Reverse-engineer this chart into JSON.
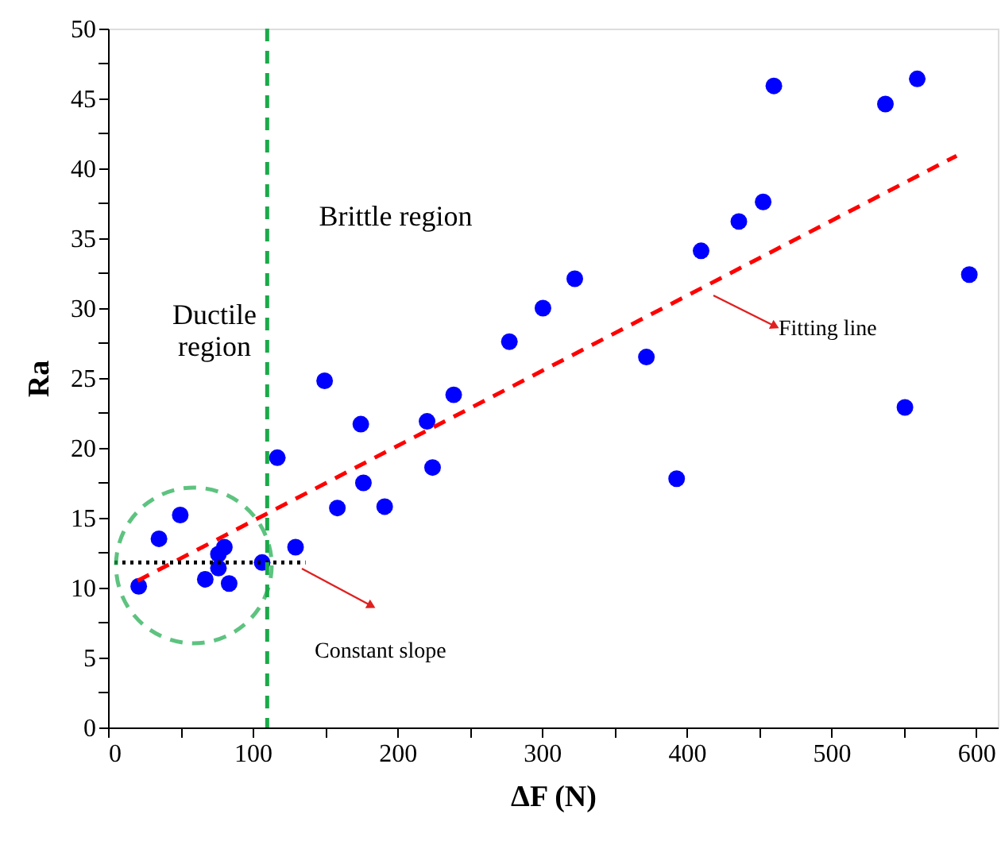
{
  "chart_data": {
    "type": "scatter",
    "xlabel": "ΔF (N)",
    "ylabel": "Ra",
    "xlim": [
      0,
      615
    ],
    "ylim": [
      0,
      50
    ],
    "xticks": [
      0,
      {
        "value": 50,
        "label": null
      },
      100,
      {
        "value": 150,
        "label": null
      },
      200,
      {
        "value": 250,
        "label": null
      },
      300,
      {
        "value": 350,
        "label": null
      },
      400,
      {
        "value": 450,
        "label": null
      },
      500,
      {
        "value": 550,
        "label": null
      },
      600
    ],
    "yticks": [
      0,
      {
        "value": 2.5,
        "label": null
      },
      5,
      {
        "value": 7.5,
        "label": null
      },
      10,
      {
        "value": 12.5,
        "label": null
      },
      15,
      {
        "value": 17.5,
        "label": null
      },
      20,
      {
        "value": 22.5,
        "label": null
      },
      25,
      {
        "value": 27.5,
        "label": null
      },
      30,
      {
        "value": 32.5,
        "label": null
      },
      35,
      {
        "value": 37.5,
        "label": null
      },
      40,
      {
        "value": 42.5,
        "label": null
      },
      45,
      {
        "value": 47.5,
        "label": null
      },
      50
    ],
    "grid": false,
    "series": [
      {
        "marker": "circle",
        "color": "#0000ff",
        "x": [
          21.2,
          35.2,
          49.9,
          67.2,
          80.4,
          76.3,
          76.3,
          83.7,
          106.5,
          117,
          129.6,
          158.5,
          191.2,
          176.5,
          224.3,
          149.7,
          174.7,
          220.5,
          238.9,
          277.4,
          300.6,
          322.6,
          372.1,
          393,
          409.9,
          436,
          452.8,
          460.2,
          537.3,
          559.3,
          550.8,
          595.3
        ],
        "values": [
          10.1,
          13.5,
          15.2,
          10.6,
          12.9,
          12.4,
          11.4,
          10.3,
          11.8,
          19.3,
          12.9,
          15.7,
          15.8,
          17.5,
          18.6,
          24.8,
          21.7,
          21.9,
          23.8,
          27.6,
          30.0,
          32.1,
          26.5,
          17.8,
          34.1,
          36.2,
          37.6,
          45.9,
          44.6,
          46.4,
          22.9,
          32.4
        ]
      },
      {
        "type": "line",
        "color": "#ff0000",
        "line_style": "dashed",
        "x": [
          20.5,
          586.5
        ],
        "values": [
          10.5,
          40.9
        ]
      },
      {
        "type": "line",
        "color": "#000000",
        "line_style": "dotted",
        "x": [
          4.4,
          136.5
        ],
        "values": [
          11.8,
          11.8
        ]
      }
    ],
    "ref_lines": [
      {
        "axis": "x",
        "value": 110,
        "color": "#1aaa4a",
        "line_style": "dashed"
      }
    ],
    "annotations": [
      "Ductile\nregion",
      "Brittle region",
      "Fitting line",
      "Constant slope"
    ]
  }
}
